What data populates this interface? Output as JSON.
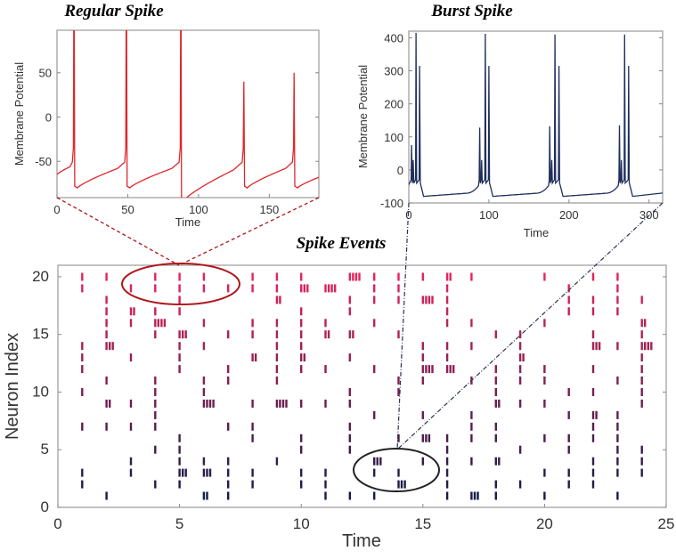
{
  "colors": {
    "regular": "#e0262b",
    "burst": "#1e2f5e",
    "raster_low": "#141c48",
    "raster_high": "#e6235a",
    "ellipse_red": "#b0151c",
    "ellipse_black": "#222222",
    "connector_red": "#b0151c",
    "connector_dark": "#2a3450"
  },
  "chart_data": [
    {
      "id": "regular",
      "type": "line",
      "title": "Regular Spike",
      "xlabel": "Time",
      "ylabel": "Membrane Potential",
      "xlim": [
        0,
        185
      ],
      "ylim": [
        -91,
        98
      ],
      "xticks": [
        "0",
        "50",
        "100",
        "150"
      ],
      "xtick_values": [
        0,
        50,
        100,
        150
      ],
      "yticks": [
        "-50",
        "0",
        "50"
      ],
      "ytick_values": [
        -50,
        0,
        50
      ],
      "start_potential": -65,
      "threshold": -55,
      "spike_times": [
        12,
        49,
        87.5,
        132,
        167.5
      ],
      "spike_peaks": [
        200,
        200,
        200,
        40,
        50
      ],
      "resets": [
        -78,
        -78,
        -92,
        -78,
        -78
      ]
    },
    {
      "id": "burst",
      "type": "line",
      "title": "Burst Spike",
      "xlabel": "Time",
      "ylabel": "Membrane Potential",
      "xlim": [
        0,
        317
      ],
      "ylim": [
        -100,
        420
      ],
      "xticks": [
        "0",
        "100",
        "200",
        "300"
      ],
      "xtick_values": [
        0,
        100,
        200,
        300
      ],
      "yticks": [
        "-100",
        "0",
        "100",
        "200",
        "300",
        "400"
      ],
      "ytick_values": [
        -100,
        0,
        100,
        200,
        300,
        400
      ],
      "reset": -80,
      "bursts": [
        {
          "times": [
            3.5,
            5.5,
            9,
            13.5
          ],
          "peaks": [
            75,
            30,
            415,
            315
          ]
        },
        {
          "times": [
            88.5,
            91,
            95.5,
            100
          ],
          "peaks": [
            128,
            30,
            412,
            315
          ]
        },
        {
          "times": [
            176,
            178.5,
            182.5,
            187.5
          ],
          "peaks": [
            132,
            30,
            410,
            315
          ]
        },
        {
          "times": [
            263,
            265.5,
            269.5,
            274.5
          ],
          "peaks": [
            135,
            30,
            410,
            315
          ]
        }
      ]
    },
    {
      "id": "raster",
      "type": "scatter",
      "title": "Spike Events",
      "xlabel": "Time",
      "ylabel": "Neuron Index",
      "xlim": [
        0,
        25
      ],
      "ylim": [
        0,
        21
      ],
      "xticks": [
        "0",
        "5",
        "10",
        "15",
        "20",
        "25"
      ],
      "xtick_values": [
        0,
        5,
        10,
        15,
        20,
        25
      ],
      "yticks": [
        "0",
        "5",
        "10",
        "15",
        "20"
      ],
      "ytick_values": [
        0,
        5,
        10,
        15,
        20
      ],
      "burst_spacing": 0.13,
      "rows": [
        {
          "neuron": 20,
          "spikes": [
            1,
            2,
            4,
            5,
            6,
            8,
            9,
            10,
            [
              12,
              4
            ],
            13,
            14,
            15,
            [
              16,
              2
            ],
            17,
            20,
            22,
            23
          ]
        },
        {
          "neuron": 19,
          "spikes": [
            1,
            3,
            4,
            5,
            6,
            7,
            8,
            9,
            [
              10,
              3
            ],
            [
              11,
              4
            ],
            13,
            14,
            16,
            21,
            23
          ]
        },
        {
          "neuron": 18,
          "spikes": [
            2,
            5,
            [
              9,
              2
            ],
            12,
            13,
            14,
            [
              15,
              4
            ],
            16,
            21,
            22,
            23,
            24
          ]
        },
        {
          "neuron": 17,
          "spikes": [
            2,
            [
              3,
              2
            ],
            4,
            5,
            10,
            12,
            16,
            21,
            22,
            23
          ]
        },
        {
          "neuron": 16,
          "spikes": [
            2,
            3,
            [
              4,
              4
            ],
            6,
            8,
            9,
            10,
            11,
            13,
            16,
            17,
            20,
            [
              24,
              2
            ]
          ]
        },
        {
          "neuron": 15,
          "spikes": [
            2,
            4,
            [
              5,
              3
            ],
            7,
            8,
            9,
            10,
            [
              11,
              2
            ],
            [
              12,
              2
            ],
            14,
            18,
            19,
            22,
            24
          ]
        },
        {
          "neuron": 14,
          "spikes": [
            1,
            [
              2,
              3
            ],
            5,
            6,
            9,
            10,
            15,
            16,
            17,
            19,
            [
              22,
              3
            ],
            23,
            [
              24,
              4
            ]
          ]
        },
        {
          "neuron": 13,
          "spikes": [
            1,
            3,
            5,
            [
              8,
              2
            ],
            9,
            [
              10,
              2
            ],
            12,
            15,
            16,
            [
              19,
              2
            ],
            24
          ]
        },
        {
          "neuron": 12,
          "spikes": [
            1,
            5,
            7,
            9,
            10,
            11,
            13,
            [
              15,
              4
            ],
            [
              16,
              3
            ],
            18,
            19,
            20,
            22,
            24
          ]
        },
        {
          "neuron": 11,
          "spikes": [
            2,
            4,
            6,
            7,
            9,
            14,
            15,
            17,
            18,
            19,
            20,
            23,
            24
          ]
        },
        {
          "neuron": 10,
          "spikes": [
            1,
            4,
            6,
            12,
            14,
            18,
            21,
            22,
            24
          ]
        },
        {
          "neuron": 9,
          "spikes": [
            [
              2,
              2
            ],
            3,
            4,
            [
              6,
              4
            ],
            8,
            [
              9,
              4
            ],
            10,
            11,
            12,
            [
              18,
              2
            ],
            19,
            20,
            24
          ]
        },
        {
          "neuron": 8,
          "spikes": [
            4,
            13,
            15,
            17,
            21,
            [
              22,
              2
            ],
            23
          ]
        },
        {
          "neuron": 7,
          "spikes": [
            1,
            2,
            3,
            4,
            7,
            8,
            12,
            17,
            18,
            22,
            23
          ]
        },
        {
          "neuron": 6,
          "spikes": [
            5,
            8,
            10,
            12,
            14,
            [
              15,
              3
            ],
            16,
            17,
            18,
            20,
            21,
            22,
            23
          ]
        },
        {
          "neuron": 5,
          "spikes": [
            4,
            5,
            10,
            12,
            16,
            19,
            21,
            23,
            24
          ]
        },
        {
          "neuron": 4,
          "spikes": [
            3,
            5,
            6,
            7,
            9,
            [
              13,
              3
            ],
            15,
            16,
            17,
            [
              18,
              2
            ],
            22,
            23,
            24
          ]
        },
        {
          "neuron": 3,
          "spikes": [
            1,
            3,
            [
              5,
              3
            ],
            [
              6,
              3
            ],
            7,
            8,
            10,
            11,
            13,
            14,
            16,
            20,
            21,
            22,
            23,
            24
          ]
        },
        {
          "neuron": 2,
          "spikes": [
            1,
            4,
            5,
            7,
            8,
            10,
            11,
            [
              14,
              3
            ],
            16,
            18,
            19,
            21,
            22
          ]
        },
        {
          "neuron": 1,
          "spikes": [
            2,
            [
              6,
              2
            ],
            7,
            11,
            12,
            13,
            16,
            [
              17,
              3
            ],
            18,
            20,
            23
          ]
        }
      ]
    }
  ]
}
